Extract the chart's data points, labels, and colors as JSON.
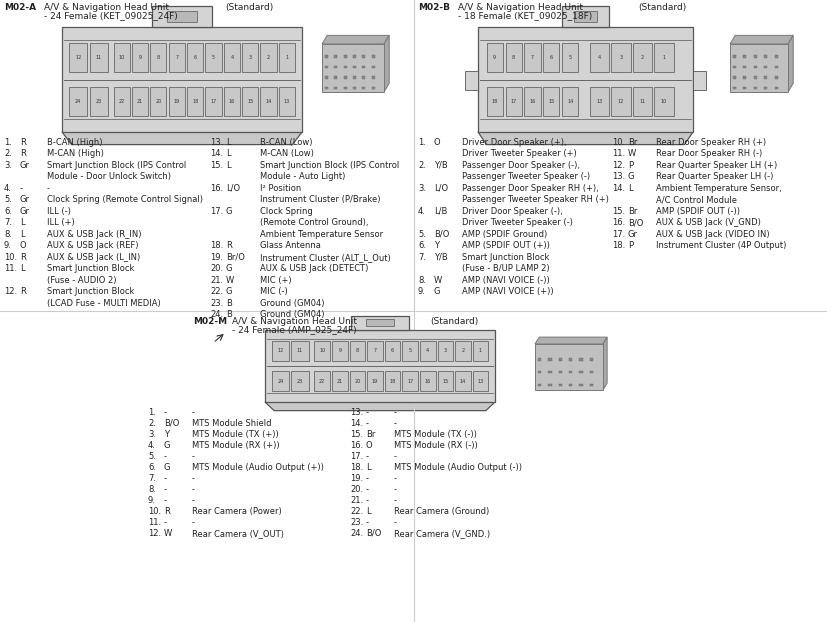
{
  "m02a_label": "M02-A",
  "m02a_title": "A/V & Navigation Head Unit",
  "m02a_std": "(Standard)",
  "m02a_sub": "- 24 Female (KET_09025_24F)",
  "m02b_label": "M02-B",
  "m02b_title": "A/V & Navigation Head Unit",
  "m02b_std": "(Standard)",
  "m02b_sub": "- 18 Female (KET_09025_18F)",
  "m02m_label": "M02-M",
  "m02m_title": "A/V & Navigation Head Unit",
  "m02m_std": "(Standard)",
  "m02m_sub": "- 24 Female (AMP_025_24F)",
  "m02a_wires_left": [
    [
      "1.",
      "R",
      "B-CAN (High)"
    ],
    [
      "2.",
      "R",
      "M-CAN (High)"
    ],
    [
      "3.",
      "Gr",
      "Smart Junction Block (IPS Control"
    ],
    [
      "",
      "",
      "Module - Door Unlock Switch)"
    ],
    [
      "4.",
      "-",
      "-"
    ],
    [
      "5.",
      "Gr",
      "Clock Spring (Remote Control Signal)"
    ],
    [
      "6.",
      "Gr",
      "ILL (-)"
    ],
    [
      "7.",
      "L",
      "ILL (+)"
    ],
    [
      "8.",
      "L",
      "AUX & USB Jack (R_IN)"
    ],
    [
      "9.",
      "O",
      "AUX & USB Jack (REF)"
    ],
    [
      "10.",
      "R",
      "AUX & USB Jack (L_IN)"
    ],
    [
      "11.",
      "L",
      "Smart Junction Block"
    ],
    [
      "",
      "",
      "(Fuse - AUDIO 2)"
    ],
    [
      "12.",
      "R",
      "Smart Junction Block"
    ],
    [
      "",
      "",
      "(LCAD Fuse - MULTI MEDIA)"
    ]
  ],
  "m02a_wires_right": [
    [
      "13.",
      "L",
      "B-CAN (Low)"
    ],
    [
      "14.",
      "L",
      "M-CAN (Low)"
    ],
    [
      "15.",
      "L",
      "Smart Junction Block (IPS Control"
    ],
    [
      "",
      "",
      "Module - Auto Light)"
    ],
    [
      "16.",
      "L/O",
      "I² Position"
    ],
    [
      "",
      "",
      "Instrument Cluster (P/Brake)"
    ],
    [
      "17.",
      "G",
      "Clock Spring"
    ],
    [
      "",
      "",
      "(Remote Control Ground),"
    ],
    [
      "",
      "",
      "Ambient Temperature Sensor"
    ],
    [
      "18.",
      "R",
      "Glass Antenna"
    ],
    [
      "19.",
      "Br/O",
      "Instrument Cluster (ALT_L_Out)"
    ],
    [
      "20.",
      "G",
      "AUX & USB Jack (DETECT)"
    ],
    [
      "21.",
      "W",
      "MIC (+)"
    ],
    [
      "22.",
      "G",
      "MIC (-)"
    ],
    [
      "23.",
      "B",
      "Ground (GM04)"
    ],
    [
      "24.",
      "B",
      "Ground (GM04)"
    ]
  ],
  "m02b_wires_left": [
    [
      "1.",
      "O",
      "Driver Door Speaker (+),"
    ],
    [
      "",
      "",
      "Driver Tweeter Speaker (+)"
    ],
    [
      "2.",
      "Y/B",
      "Passenger Door Speaker (-),"
    ],
    [
      "",
      "",
      "Passenger Tweeter Speaker (-)"
    ],
    [
      "3.",
      "L/O",
      "Passenger Door Speaker RH (+),"
    ],
    [
      "",
      "",
      "Passenger Tweeter Speaker RH (+)"
    ],
    [
      "4.",
      "L/B",
      "Driver Door Speaker (-),"
    ],
    [
      "",
      "",
      "Driver Tweeter Speaker (-)"
    ],
    [
      "5.",
      "B/O",
      "AMP (SPDIF Ground)"
    ],
    [
      "6.",
      "Y",
      "AMP (SPDIF OUT (+))"
    ],
    [
      "7.",
      "Y/B",
      "Smart Junction Block"
    ],
    [
      "",
      "",
      "(Fuse - B/UP LAMP 2)"
    ],
    [
      "8.",
      "W",
      "AMP (NAVI VOICE (-))"
    ],
    [
      "9.",
      "G",
      "AMP (NAVI VOICE (+))"
    ]
  ],
  "m02b_wires_right": [
    [
      "10.",
      "Br",
      "Rear Door Speaker RH (+)"
    ],
    [
      "11.",
      "W",
      "Rear Door Speaker RH (-)"
    ],
    [
      "12.",
      "P",
      "Rear Quarter Speaker LH (+)"
    ],
    [
      "13.",
      "G",
      "Rear Quarter Speaker LH (-)"
    ],
    [
      "14.",
      "L",
      "Ambient Temperature Sensor,"
    ],
    [
      "",
      "",
      "A/C Control Module"
    ],
    [
      "15.",
      "Br",
      "AMP (SPDIF OUT (-))"
    ],
    [
      "16.",
      "B/O",
      "AUX & USB Jack (V_GND)"
    ],
    [
      "17.",
      "Gr",
      "AUX & USB Jack (VIDEO IN)"
    ],
    [
      "18.",
      "P",
      "Instrument Cluster (4P Output)"
    ]
  ],
  "m02m_wires_left": [
    [
      "1.",
      "-",
      "-"
    ],
    [
      "2.",
      "B/O",
      "MTS Module Shield"
    ],
    [
      "3.",
      "Y",
      "MTS Module (TX (+))"
    ],
    [
      "4.",
      "G",
      "MTS Module (RX (+))"
    ],
    [
      "5.",
      "-",
      "-"
    ],
    [
      "6.",
      "G",
      "MTS Module (Audio Output (+))"
    ],
    [
      "7.",
      "-",
      "-"
    ],
    [
      "8.",
      "-",
      "-"
    ],
    [
      "9.",
      "-",
      "-"
    ],
    [
      "10.",
      "R",
      "Rear Camera (Power)"
    ],
    [
      "11.",
      "-",
      "-"
    ],
    [
      "12.",
      "W",
      "Rear Camera (V_OUT)"
    ]
  ],
  "m02m_wires_right": [
    [
      "13.",
      "-",
      "-"
    ],
    [
      "14.",
      "-",
      "-"
    ],
    [
      "15.",
      "Br",
      "MTS Module (TX (-))"
    ],
    [
      "16.",
      "O",
      "MTS Module (RX (-))"
    ],
    [
      "17.",
      "-",
      "-"
    ],
    [
      "18.",
      "L",
      "MTS Module (Audio Output (-))"
    ],
    [
      "19.",
      "-",
      "-"
    ],
    [
      "20.",
      "-",
      "-"
    ],
    [
      "21.",
      "-",
      "-"
    ],
    [
      "22.",
      "L",
      "Rear Camera (Ground)"
    ],
    [
      "23.",
      "-",
      "-"
    ],
    [
      "24.",
      "B/O",
      "Rear Camera (V_GND.)"
    ]
  ]
}
